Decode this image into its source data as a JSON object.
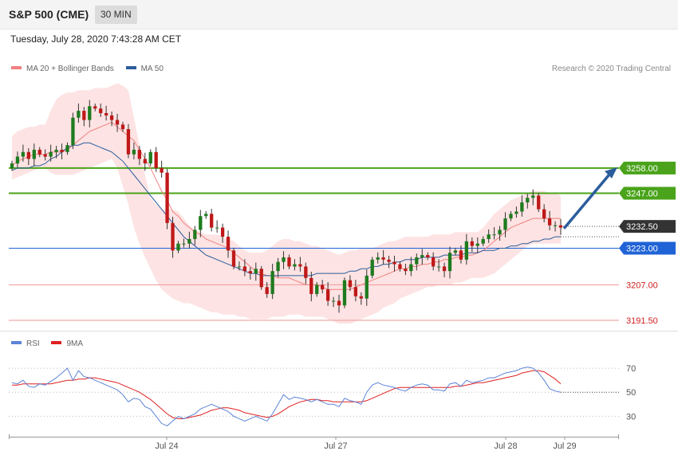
{
  "header": {
    "title": "S&P 500 (CME)",
    "timeframe_label": "30 MIN"
  },
  "datetime": "Tuesday, July 28, 2020 7:43:28 AM CET",
  "legend_main": [
    {
      "label": "MA 20 + Bollinger Bands",
      "color": "#f08080"
    },
    {
      "label": "MA 50",
      "color": "#2b5d9c"
    }
  ],
  "legend_rsi": [
    {
      "label": "RSI",
      "color": "#5b84d6"
    },
    {
      "label": "9MA",
      "color": "#e02020"
    }
  ],
  "copyright": "Research © 2020 Trading Central",
  "colors": {
    "up": "#1e7b1e",
    "down": "#c01818",
    "resistance": "#4aa31a",
    "pivot": "#1f63d6",
    "support": "#f2a0a0",
    "current": "#333333",
    "band": "#fde0e0",
    "arrow": "#2b5d9c"
  },
  "chart_data": [
    {
      "type": "candlestick",
      "ylim": [
        3188,
        3298
      ],
      "x_labels": [
        "Jul 24",
        "Jul 27",
        "Jul 28",
        "Jul 29"
      ],
      "levels": [
        {
          "value": 3258.0,
          "label": "3258.00",
          "kind": "resistance"
        },
        {
          "value": 3247.0,
          "label": "3247.00",
          "kind": "resistance"
        },
        {
          "value": 3232.5,
          "label": "3232.50",
          "kind": "current"
        },
        {
          "value": 3223.0,
          "label": "3223.00",
          "kind": "pivot"
        },
        {
          "value": 3207.0,
          "label": "3207.00",
          "kind": "support"
        },
        {
          "value": 3191.5,
          "label": "3191.50",
          "kind": "support"
        }
      ],
      "close": [
        3260,
        3263,
        3265,
        3262,
        3266,
        3264,
        3263,
        3265,
        3266,
        3265,
        3268,
        3280,
        3283,
        3279,
        3285,
        3284,
        3282,
        3281,
        3279,
        3277,
        3275,
        3264,
        3266,
        3262,
        3260,
        3265,
        3258,
        3256,
        3234,
        3222,
        3225,
        3225,
        3227,
        3231,
        3237,
        3238,
        3232,
        3232,
        3228,
        3222,
        3215,
        3215,
        3213,
        3212,
        3214,
        3206,
        3203,
        3213,
        3217,
        3219,
        3215,
        3216,
        3215,
        3210,
        3203,
        3207,
        3205,
        3200,
        3200,
        3198,
        3209,
        3206,
        3202,
        3201,
        3211,
        3218,
        3219,
        3218,
        3217,
        3216,
        3214,
        3213,
        3216,
        3219,
        3220,
        3219,
        3215,
        3215,
        3213,
        3221,
        3222,
        3218,
        3226,
        3224,
        3225,
        3227,
        3229,
        3229,
        3231,
        3236,
        3238,
        3239,
        3243,
        3245,
        3246,
        3240,
        3236,
        3233,
        3233,
        3232
      ],
      "ma20": [
        3259,
        3261,
        3262,
        3263,
        3264,
        3264,
        3264,
        3265,
        3265,
        3265,
        3266,
        3268,
        3270,
        3272,
        3274,
        3275,
        3276,
        3277,
        3278,
        3276,
        3274,
        3272,
        3270,
        3266,
        3262,
        3258,
        3253,
        3248,
        3244,
        3239,
        3237,
        3234,
        3232,
        3230,
        3229,
        3227,
        3226,
        3225,
        3224,
        3223,
        3221,
        3219,
        3217,
        3215,
        3213,
        3212,
        3211,
        3211,
        3210,
        3210,
        3210,
        3209,
        3208,
        3207,
        3207,
        3207,
        3206,
        3205,
        3205,
        3205,
        3205,
        3205,
        3206,
        3207,
        3208,
        3209,
        3210,
        3211,
        3212,
        3213,
        3214,
        3214,
        3215,
        3215,
        3216,
        3216,
        3217,
        3217,
        3218,
        3218,
        3219,
        3219,
        3220,
        3220,
        3221,
        3222,
        3224,
        3226,
        3228,
        3230,
        3232,
        3233,
        3234,
        3235,
        3236,
        3236,
        3236,
        3236,
        3236,
        3236
      ],
      "bb_upper": [
        3272,
        3274,
        3275,
        3276,
        3276,
        3277,
        3277,
        3283,
        3288,
        3290,
        3291,
        3291,
        3292,
        3292,
        3292,
        3293,
        3293,
        3293,
        3294,
        3295,
        3294,
        3292,
        3280,
        3268,
        3255,
        3245,
        3242,
        3240,
        3240,
        3240,
        3239,
        3236,
        3233,
        3231,
        3230,
        3229,
        3229,
        3229,
        3228,
        3227,
        3226,
        3224,
        3222,
        3221,
        3221,
        3221,
        3222,
        3224,
        3226,
        3227,
        3227,
        3226,
        3226,
        3225,
        3224,
        3224,
        3223,
        3222,
        3221,
        3220,
        3221,
        3222,
        3222,
        3223,
        3223,
        3223,
        3224,
        3225,
        3226,
        3226,
        3227,
        3228,
        3228,
        3228,
        3228,
        3228,
        3229,
        3229,
        3229,
        3229,
        3230,
        3230,
        3230,
        3230,
        3230,
        3232,
        3235,
        3238,
        3240,
        3242,
        3244,
        3245,
        3246,
        3247,
        3248,
        3248,
        3248,
        3247,
        3247,
        3246
      ],
      "bb_lower": [
        3253,
        3254,
        3255,
        3256,
        3257,
        3258,
        3258,
        3256,
        3255,
        3255,
        3255,
        3255,
        3256,
        3257,
        3258,
        3259,
        3260,
        3261,
        3262,
        3258,
        3250,
        3242,
        3232,
        3225,
        3219,
        3214,
        3209,
        3205,
        3203,
        3201,
        3200,
        3199,
        3199,
        3198,
        3197,
        3196,
        3195,
        3195,
        3194,
        3194,
        3194,
        3193,
        3193,
        3192,
        3192,
        3192,
        3192,
        3193,
        3193,
        3193,
        3194,
        3194,
        3194,
        3193,
        3193,
        3193,
        3193,
        3192,
        3191,
        3190,
        3190,
        3190,
        3191,
        3192,
        3193,
        3194,
        3195,
        3197,
        3198,
        3199,
        3201,
        3202,
        3203,
        3204,
        3205,
        3206,
        3206,
        3207,
        3207,
        3207,
        3208,
        3208,
        3209,
        3210,
        3210,
        3210,
        3211,
        3212,
        3214,
        3216,
        3218,
        3220,
        3222,
        3224,
        3225,
        3225,
        3225,
        3225,
        3225,
        3225
      ],
      "ma50": [
        3257,
        3258,
        3258,
        3258,
        3259,
        3259,
        3260,
        3262,
        3263,
        3265,
        3267,
        3268,
        3268,
        3269,
        3269,
        3268,
        3267,
        3266,
        3265,
        3263,
        3261,
        3258,
        3255,
        3252,
        3249,
        3246,
        3243,
        3240,
        3237,
        3234,
        3231,
        3228,
        3226,
        3224,
        3222,
        3220,
        3219,
        3218,
        3217,
        3216,
        3215,
        3214,
        3213,
        3212,
        3212,
        3211,
        3211,
        3211,
        3211,
        3211,
        3211,
        3211,
        3211,
        3211,
        3211,
        3212,
        3212,
        3212,
        3212,
        3212,
        3212,
        3213,
        3213,
        3214,
        3214,
        3215,
        3215,
        3216,
        3216,
        3217,
        3217,
        3218,
        3218,
        3218,
        3219,
        3219,
        3219,
        3219,
        3220,
        3220,
        3220,
        3220,
        3221,
        3221,
        3221,
        3222,
        3222,
        3222,
        3223,
        3223,
        3224,
        3224,
        3225,
        3225,
        3226,
        3226,
        3227,
        3227,
        3228,
        3228
      ]
    },
    {
      "type": "line",
      "ylim": [
        15,
        82
      ],
      "grid_levels": [
        70,
        50,
        30
      ],
      "series": [
        {
          "name": "RSI",
          "values": [
            58,
            57,
            60,
            55,
            54,
            57,
            56,
            59,
            62,
            66,
            70,
            60,
            68,
            63,
            62,
            60,
            58,
            56,
            54,
            52,
            48,
            42,
            45,
            44,
            38,
            36,
            30,
            24,
            22,
            26,
            30,
            28,
            30,
            32,
            36,
            38,
            40,
            38,
            36,
            34,
            30,
            28,
            26,
            28,
            30,
            28,
            26,
            32,
            40,
            48,
            44,
            46,
            45,
            44,
            42,
            44,
            42,
            40,
            40,
            38,
            45,
            43,
            42,
            40,
            50,
            56,
            58,
            56,
            55,
            54,
            52,
            51,
            54,
            56,
            57,
            56,
            52,
            52,
            51,
            57,
            58,
            55,
            60,
            58,
            59,
            60,
            62,
            62,
            64,
            66,
            67,
            68,
            70,
            71,
            70,
            66,
            60,
            53,
            51,
            50
          ]
        },
        {
          "name": "9MA",
          "values": [
            56,
            56,
            57,
            57,
            57,
            57,
            57,
            57,
            58,
            59,
            60,
            60,
            61,
            61,
            62,
            62,
            61,
            60,
            59,
            58,
            56,
            54,
            52,
            50,
            47,
            44,
            40,
            36,
            32,
            29,
            28,
            28,
            29,
            30,
            31,
            33,
            35,
            36,
            37,
            37,
            36,
            35,
            33,
            32,
            31,
            30,
            29,
            30,
            32,
            35,
            38,
            40,
            42,
            43,
            44,
            44,
            43,
            43,
            42,
            42,
            42,
            42,
            42,
            42,
            43,
            45,
            47,
            49,
            51,
            53,
            54,
            54,
            54,
            54,
            54,
            54,
            54,
            54,
            54,
            54,
            55,
            55,
            56,
            57,
            58,
            58,
            59,
            60,
            61,
            62,
            63,
            64,
            66,
            67,
            68,
            68,
            67,
            64,
            61,
            57
          ]
        }
      ]
    }
  ]
}
